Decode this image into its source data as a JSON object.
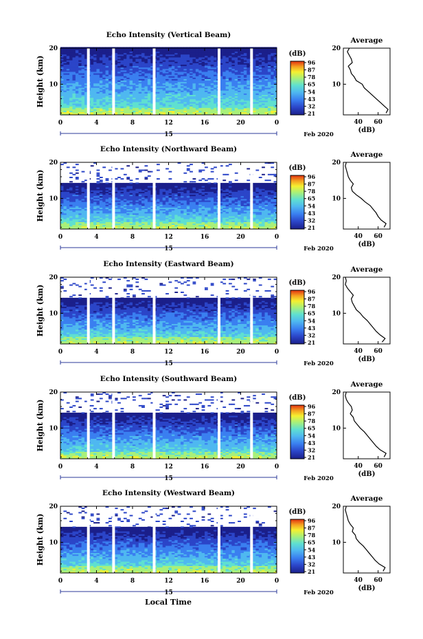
{
  "figure": {
    "date_day": "15",
    "date_label": "Feb 2020",
    "xlabel": "Local Time",
    "ylabel": "Height (km)",
    "colorbar_unit": "(dB)",
    "colorbar_ticks": [
      "96",
      "87",
      "78",
      "65",
      "54",
      "43",
      "32",
      "21"
    ],
    "avg_title": "Average",
    "avg_xlabel": "(dB)"
  },
  "chart_data": [
    {
      "type": "heatmap",
      "title": "Echo Intensity (Vertical Beam)",
      "beam": "vertical",
      "x_ticks": [
        "0",
        "4",
        "8",
        "12",
        "16",
        "20",
        "0"
      ],
      "y_ticks": [
        "20",
        "10"
      ],
      "xlim": [
        0,
        24
      ],
      "ylim": [
        1.5,
        20
      ],
      "top_km": 20,
      "gaps_hours": [
        3.1,
        5.9,
        10.4,
        17.6,
        21.2
      ],
      "color_scale": [
        "#1b1f8a",
        "#2b45c8",
        "#3a7ff0",
        "#4fb8f0",
        "#5fe0d0",
        "#a8f07a",
        "#f5f030",
        "#f5a020",
        "#e03010"
      ],
      "average_profile": {
        "x_ticks": [
          "40",
          "60"
        ],
        "xlim": [
          25,
          72
        ],
        "ylim": [
          1.5,
          20
        ],
        "height_km": [
          2,
          3,
          4,
          5,
          6,
          7,
          8,
          9,
          10,
          11,
          12,
          13,
          14,
          15,
          16,
          17,
          18,
          19,
          20
        ],
        "db": [
          68,
          70,
          66,
          62,
          58,
          54,
          50,
          46,
          44,
          38,
          36,
          33,
          32,
          30,
          34,
          33,
          31,
          29,
          31
        ]
      }
    },
    {
      "type": "heatmap",
      "title": "Echo Intensity (Northward Beam)",
      "beam": "north",
      "x_ticks": [
        "0",
        "4",
        "8",
        "12",
        "16",
        "20",
        "0"
      ],
      "y_ticks": [
        "20",
        "10"
      ],
      "xlim": [
        0,
        24
      ],
      "ylim": [
        1.5,
        20
      ],
      "top_km": 14,
      "gaps_hours": [
        3.1,
        5.9,
        10.4,
        17.6,
        21.2
      ],
      "color_scale": [
        "#1b1f8a",
        "#2b45c8",
        "#3a7ff0",
        "#4fb8f0",
        "#5fe0d0",
        "#a8f07a",
        "#f5f030",
        "#f5a020",
        "#e03010"
      ],
      "average_profile": {
        "x_ticks": [
          "40",
          "60"
        ],
        "xlim": [
          25,
          72
        ],
        "ylim": [
          1.5,
          20
        ],
        "height_km": [
          2,
          3,
          4,
          5,
          6,
          7,
          8,
          9,
          10,
          11,
          12,
          13,
          14,
          15,
          16,
          17,
          18,
          19,
          20
        ],
        "db": [
          66,
          68,
          63,
          60,
          58,
          55,
          52,
          47,
          43,
          38,
          34,
          33,
          35,
          32,
          30,
          29,
          28,
          27,
          28
        ]
      }
    },
    {
      "type": "heatmap",
      "title": "Echo Intensity (Eastward Beam)",
      "beam": "east",
      "x_ticks": [
        "0",
        "4",
        "8",
        "12",
        "16",
        "20",
        "0"
      ],
      "y_ticks": [
        "20",
        "10"
      ],
      "xlim": [
        0,
        24
      ],
      "ylim": [
        1.5,
        20
      ],
      "top_km": 14,
      "gaps_hours": [
        3.1,
        5.9,
        10.4,
        17.6,
        21.2
      ],
      "color_scale": [
        "#1b1f8a",
        "#2b45c8",
        "#3a7ff0",
        "#4fb8f0",
        "#5fe0d0",
        "#a8f07a",
        "#f5f030",
        "#f5a020",
        "#e03010"
      ],
      "average_profile": {
        "x_ticks": [
          "40",
          "60"
        ],
        "xlim": [
          25,
          72
        ],
        "ylim": [
          1.5,
          20
        ],
        "height_km": [
          2,
          3,
          4,
          5,
          6,
          7,
          8,
          9,
          10,
          11,
          12,
          13,
          14,
          15,
          16,
          17,
          18,
          19,
          20
        ],
        "db": [
          64,
          67,
          62,
          58,
          55,
          52,
          49,
          45,
          42,
          38,
          36,
          34,
          33,
          35,
          32,
          29,
          27,
          28,
          27
        ]
      }
    },
    {
      "type": "heatmap",
      "title": "Echo Intensity (Southward Beam)",
      "beam": "south",
      "x_ticks": [
        "0",
        "4",
        "8",
        "12",
        "16",
        "20",
        "0"
      ],
      "y_ticks": [
        "20",
        "10"
      ],
      "xlim": [
        0,
        24
      ],
      "ylim": [
        1.5,
        20
      ],
      "top_km": 14,
      "gaps_hours": [
        3.1,
        5.9,
        10.4,
        17.6,
        21.2
      ],
      "color_scale": [
        "#1b1f8a",
        "#2b45c8",
        "#3a7ff0",
        "#4fb8f0",
        "#5fe0d0",
        "#a8f07a",
        "#f5f030",
        "#f5a020",
        "#e03010"
      ],
      "average_profile": {
        "x_ticks": [
          "40",
          "60"
        ],
        "xlim": [
          25,
          72
        ],
        "ylim": [
          1.5,
          20
        ],
        "height_km": [
          2,
          3,
          4,
          5,
          6,
          7,
          8,
          9,
          10,
          11,
          12,
          13,
          14,
          15,
          16,
          17,
          18,
          19,
          20
        ],
        "db": [
          66,
          68,
          62,
          58,
          55,
          52,
          49,
          46,
          42,
          39,
          36,
          35,
          32,
          34,
          33,
          30,
          28,
          27,
          28
        ]
      }
    },
    {
      "type": "heatmap",
      "title": "Echo Intensity (Westward Beam)",
      "beam": "west",
      "x_ticks": [
        "0",
        "4",
        "8",
        "12",
        "16",
        "20",
        "0"
      ],
      "y_ticks": [
        "20",
        "10"
      ],
      "xlim": [
        0,
        24
      ],
      "ylim": [
        1.5,
        20
      ],
      "top_km": 14,
      "gaps_hours": [
        3.1,
        5.9,
        10.4,
        17.6,
        21.2
      ],
      "color_scale": [
        "#1b1f8a",
        "#2b45c8",
        "#3a7ff0",
        "#4fb8f0",
        "#5fe0d0",
        "#a8f07a",
        "#f5f030",
        "#f5a020",
        "#e03010"
      ],
      "average_profile": {
        "x_ticks": [
          "40",
          "60"
        ],
        "xlim": [
          25,
          72
        ],
        "ylim": [
          1.5,
          20
        ],
        "height_km": [
          2,
          3,
          4,
          5,
          6,
          7,
          8,
          9,
          10,
          11,
          12,
          13,
          14,
          15,
          16,
          17,
          18,
          19,
          20
        ],
        "db": [
          65,
          67,
          61,
          57,
          54,
          51,
          48,
          45,
          41,
          38,
          37,
          34,
          35,
          32,
          30,
          29,
          28,
          27,
          28
        ]
      }
    }
  ]
}
